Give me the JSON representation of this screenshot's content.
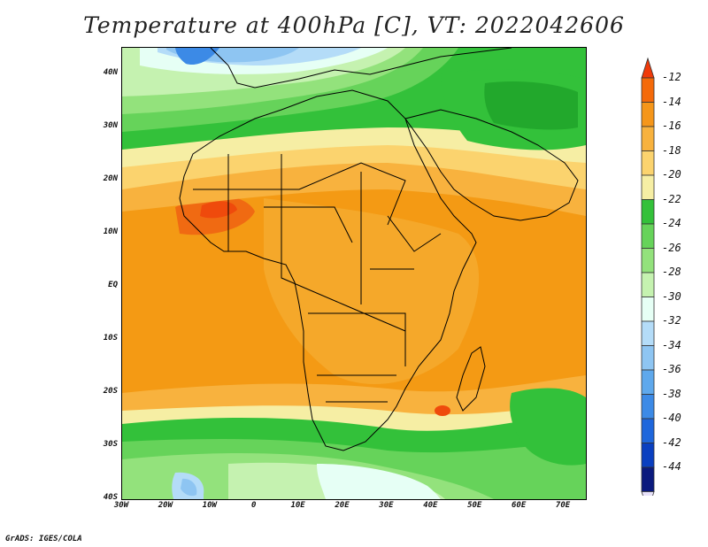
{
  "title": "Temperature at 400hPa [C], VT: 2022042606",
  "credit": "GrADS: IGES/COLA",
  "lat_labels": [
    {
      "text": "40N",
      "lat": 40
    },
    {
      "text": "30N",
      "lat": 30
    },
    {
      "text": "20N",
      "lat": 20
    },
    {
      "text": "10N",
      "lat": 10
    },
    {
      "text": "EQ",
      "lat": 0
    },
    {
      "text": "10S",
      "lat": -10
    },
    {
      "text": "20S",
      "lat": -20
    },
    {
      "text": "30S",
      "lat": -30
    },
    {
      "text": "40S",
      "lat": -40
    }
  ],
  "lon_labels": [
    {
      "text": "30W",
      "lon": -30
    },
    {
      "text": "20W",
      "lon": -20
    },
    {
      "text": "10W",
      "lon": -10
    },
    {
      "text": "0",
      "lon": 0
    },
    {
      "text": "10E",
      "lon": 10
    },
    {
      "text": "20E",
      "lon": 20
    },
    {
      "text": "30E",
      "lon": 30
    },
    {
      "text": "40E",
      "lon": 40
    },
    {
      "text": "50E",
      "lon": 50
    },
    {
      "text": "60E",
      "lon": 60
    },
    {
      "text": "70E",
      "lon": 70
    }
  ],
  "extent": {
    "lon_min": -30,
    "lon_max": 75,
    "lat_min": -40,
    "lat_max": 45
  },
  "colorbar": {
    "labels": [
      "-12",
      "-14",
      "-16",
      "-18",
      "-20",
      "-22",
      "-24",
      "-26",
      "-28",
      "-30",
      "-32",
      "-34",
      "-36",
      "-38",
      "-40",
      "-42",
      "-44"
    ],
    "colors": [
      "#f03a0a",
      "#f46a0a",
      "#f5961a",
      "#f8b23e",
      "#fbd36e",
      "#f6eea4",
      "#33c13a",
      "#66d35a",
      "#93e27c",
      "#c5f2b0",
      "#e6fff5",
      "#b4dcf8",
      "#8ec5f2",
      "#5ea8ec",
      "#3c8ae6",
      "#1e66dc",
      "#0a3fc0",
      "#0b1a7e",
      "#e8e2fa"
    ]
  }
}
